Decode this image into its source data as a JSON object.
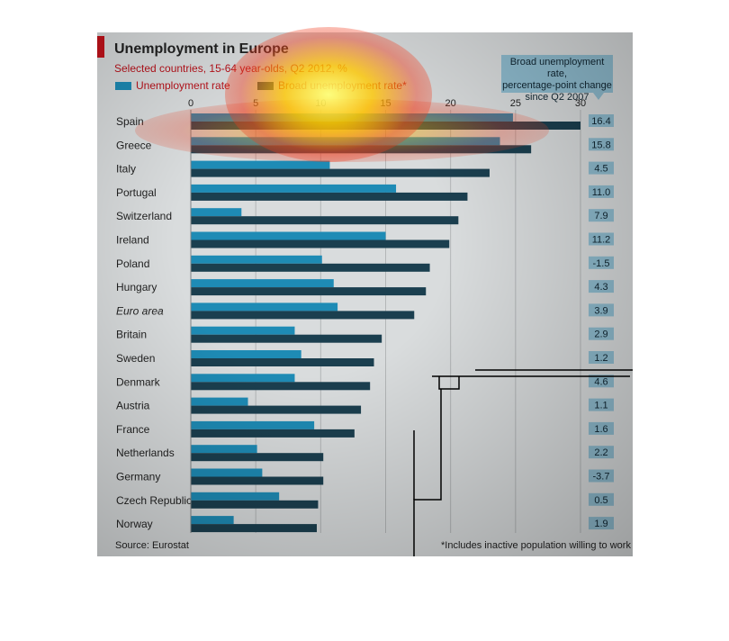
{
  "chart": {
    "title": "Unemployment in Europe",
    "subtitle": "Selected countries, 15-64 year-olds, Q2 2012, %",
    "source": "Source: Eurostat",
    "footnote": "*Includes inactive population willing to work",
    "callout": {
      "line1": "Broad unemployment rate,",
      "line2": "percentage-point change",
      "line3": "since Q2 2007"
    }
  },
  "colors": {
    "unemployment": "#1e8bb5",
    "broad": "#1b3f4f",
    "panel": "#d9dcdd",
    "accent": "#c4121b",
    "callout": "#8fbccf"
  },
  "chart_data": {
    "type": "bar",
    "orientation": "horizontal",
    "categories": [
      "Spain",
      "Greece",
      "Italy",
      "Portugal",
      "Switzerland",
      "Ireland",
      "Poland",
      "Hungary",
      "Euro area",
      "Britain",
      "Sweden",
      "Denmark",
      "Austria",
      "France",
      "Netherlands",
      "Germany",
      "Czech Republic",
      "Norway"
    ],
    "italic_categories": [
      "Euro area"
    ],
    "series": [
      {
        "name": "Unemployment rate",
        "values": [
          24.8,
          23.8,
          10.7,
          15.8,
          3.9,
          15.0,
          10.1,
          11.0,
          11.3,
          8.0,
          8.5,
          8.0,
          4.4,
          9.5,
          5.1,
          5.5,
          6.8,
          3.3
        ]
      },
      {
        "name": "Broad unemployment rate*",
        "values": [
          30.0,
          26.2,
          23.0,
          21.3,
          20.6,
          19.9,
          18.4,
          18.1,
          17.2,
          14.7,
          14.1,
          13.8,
          13.1,
          12.6,
          10.2,
          10.2,
          9.8,
          9.7
        ]
      }
    ],
    "change_labels": [
      "16.4",
      "15.8",
      "4.5",
      "11.0",
      "7.9",
      "11.2",
      "-1.5",
      "4.3",
      "3.9",
      "2.9",
      "1.2",
      "4.6",
      "1.1",
      "1.6",
      "2.2",
      "-3.7",
      "0.5",
      "1.9"
    ],
    "xticks": [
      0,
      5,
      10,
      15,
      20,
      25,
      30
    ],
    "xlim": [
      0,
      30
    ],
    "grid": true,
    "legend_position": "top-left"
  }
}
